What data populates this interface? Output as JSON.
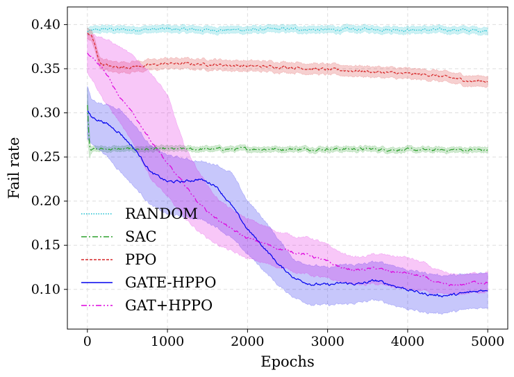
{
  "chart_data": {
    "type": "line",
    "title": "",
    "xlabel": "Epochs",
    "ylabel": "Fail rate",
    "xlim": [
      -250,
      5250
    ],
    "ylim": [
      0.055,
      0.42
    ],
    "xticks": [
      0,
      1000,
      2000,
      3000,
      4000,
      5000
    ],
    "xtick_labels": [
      "0",
      "1000",
      "2000",
      "3000",
      "4000",
      "5000"
    ],
    "yticks": [
      0.1,
      0.15,
      0.2,
      0.25,
      0.3,
      0.35,
      0.4
    ],
    "ytick_labels": [
      "0.10",
      "0.15",
      "0.20",
      "0.25",
      "0.30",
      "0.35",
      "0.40"
    ],
    "grid": true,
    "legend_position": "lower-left",
    "series": [
      {
        "name": "RANDOM",
        "color": "#17becf",
        "dash": "1.5,2",
        "band": 0.004,
        "x": [
          0,
          50,
          200,
          500,
          1000,
          1500,
          2000,
          2500,
          3000,
          3500,
          4000,
          4500,
          5000
        ],
        "values": [
          0.392,
          0.393,
          0.395,
          0.394,
          0.395,
          0.394,
          0.394,
          0.395,
          0.394,
          0.395,
          0.394,
          0.394,
          0.393
        ]
      },
      {
        "name": "SAC",
        "color": "#2ca02c",
        "dash": "8,3,2,3",
        "band": 0.0025,
        "x": [
          0,
          10,
          25,
          40,
          60,
          100,
          200,
          500,
          1000,
          1500,
          2000,
          2500,
          3000,
          3500,
          4000,
          4500,
          5000
        ],
        "values": [
          0.31,
          0.29,
          0.265,
          0.26,
          0.259,
          0.259,
          0.259,
          0.259,
          0.259,
          0.259,
          0.259,
          0.259,
          0.259,
          0.259,
          0.258,
          0.258,
          0.258
        ],
        "lower": [
          0.3,
          0.27,
          0.248,
          0.255,
          0.256,
          0.256,
          0.256,
          0.256,
          0.256,
          0.256,
          0.256,
          0.256,
          0.256,
          0.256,
          0.255,
          0.255,
          0.255
        ],
        "upper": [
          0.33,
          0.31,
          0.28,
          0.265,
          0.262,
          0.262,
          0.262,
          0.262,
          0.262,
          0.262,
          0.262,
          0.262,
          0.262,
          0.262,
          0.261,
          0.261,
          0.261
        ]
      },
      {
        "name": "PPO",
        "color": "#d62728",
        "dash": "4,2",
        "band": 0.006,
        "x": [
          0,
          50,
          100,
          150,
          200,
          300,
          500,
          800,
          1000,
          1500,
          2000,
          2500,
          3000,
          3500,
          4000,
          4300,
          4500,
          4800,
          5000
        ],
        "values": [
          0.39,
          0.387,
          0.375,
          0.358,
          0.355,
          0.352,
          0.352,
          0.354,
          0.356,
          0.355,
          0.353,
          0.352,
          0.349,
          0.347,
          0.344,
          0.343,
          0.34,
          0.336,
          0.336
        ]
      },
      {
        "name": "GATE-HPPO",
        "color": "#0000ee",
        "dash": "",
        "band": 0.0,
        "x": [
          0,
          50,
          200,
          400,
          600,
          800,
          1000,
          1200,
          1400,
          1600,
          1800,
          2000,
          2200,
          2400,
          2600,
          2800,
          3000,
          3200,
          3400,
          3600,
          3800,
          4000,
          4200,
          4400,
          4600,
          4800,
          5000
        ],
        "values": [
          0.302,
          0.295,
          0.29,
          0.278,
          0.258,
          0.232,
          0.222,
          0.222,
          0.225,
          0.218,
          0.195,
          0.168,
          0.148,
          0.127,
          0.112,
          0.106,
          0.105,
          0.107,
          0.106,
          0.11,
          0.105,
          0.1,
          0.095,
          0.093,
          0.094,
          0.097,
          0.1
        ],
        "lower": [
          0.27,
          0.265,
          0.255,
          0.235,
          0.215,
          0.195,
          0.185,
          0.182,
          0.18,
          0.172,
          0.158,
          0.14,
          0.122,
          0.103,
          0.09,
          0.083,
          0.082,
          0.083,
          0.085,
          0.088,
          0.083,
          0.078,
          0.074,
          0.073,
          0.075,
          0.078,
          0.08
        ],
        "upper": [
          0.33,
          0.315,
          0.31,
          0.305,
          0.285,
          0.262,
          0.252,
          0.248,
          0.245,
          0.242,
          0.232,
          0.2,
          0.18,
          0.155,
          0.132,
          0.128,
          0.124,
          0.128,
          0.128,
          0.131,
          0.128,
          0.122,
          0.119,
          0.116,
          0.116,
          0.117,
          0.12
        ]
      },
      {
        "name": "GAT+HPPO",
        "color": "#dd00dd",
        "dash": "8,3,2,3,2,3",
        "band": 0.0,
        "x": [
          0,
          50,
          200,
          400,
          600,
          800,
          1000,
          1200,
          1400,
          1600,
          1800,
          2000,
          2200,
          2400,
          2600,
          2800,
          3000,
          3200,
          3400,
          3600,
          3800,
          4000,
          4200,
          4400,
          4600,
          4800,
          5000
        ],
        "values": [
          0.367,
          0.365,
          0.35,
          0.318,
          0.295,
          0.268,
          0.242,
          0.22,
          0.197,
          0.181,
          0.168,
          0.158,
          0.152,
          0.146,
          0.142,
          0.138,
          0.131,
          0.124,
          0.122,
          0.124,
          0.12,
          0.118,
          0.114,
          0.106,
          0.104,
          0.108,
          0.108
        ],
        "lower": [
          0.345,
          0.34,
          0.315,
          0.29,
          0.26,
          0.225,
          0.205,
          0.182,
          0.165,
          0.152,
          0.143,
          0.135,
          0.13,
          0.125,
          0.12,
          0.116,
          0.112,
          0.108,
          0.105,
          0.106,
          0.103,
          0.1,
          0.098,
          0.094,
          0.094,
          0.096,
          0.098
        ],
        "upper": [
          0.39,
          0.39,
          0.385,
          0.375,
          0.362,
          0.345,
          0.32,
          0.265,
          0.232,
          0.205,
          0.19,
          0.18,
          0.172,
          0.165,
          0.16,
          0.158,
          0.15,
          0.14,
          0.136,
          0.14,
          0.138,
          0.136,
          0.13,
          0.12,
          0.116,
          0.118,
          0.12
        ]
      }
    ]
  }
}
